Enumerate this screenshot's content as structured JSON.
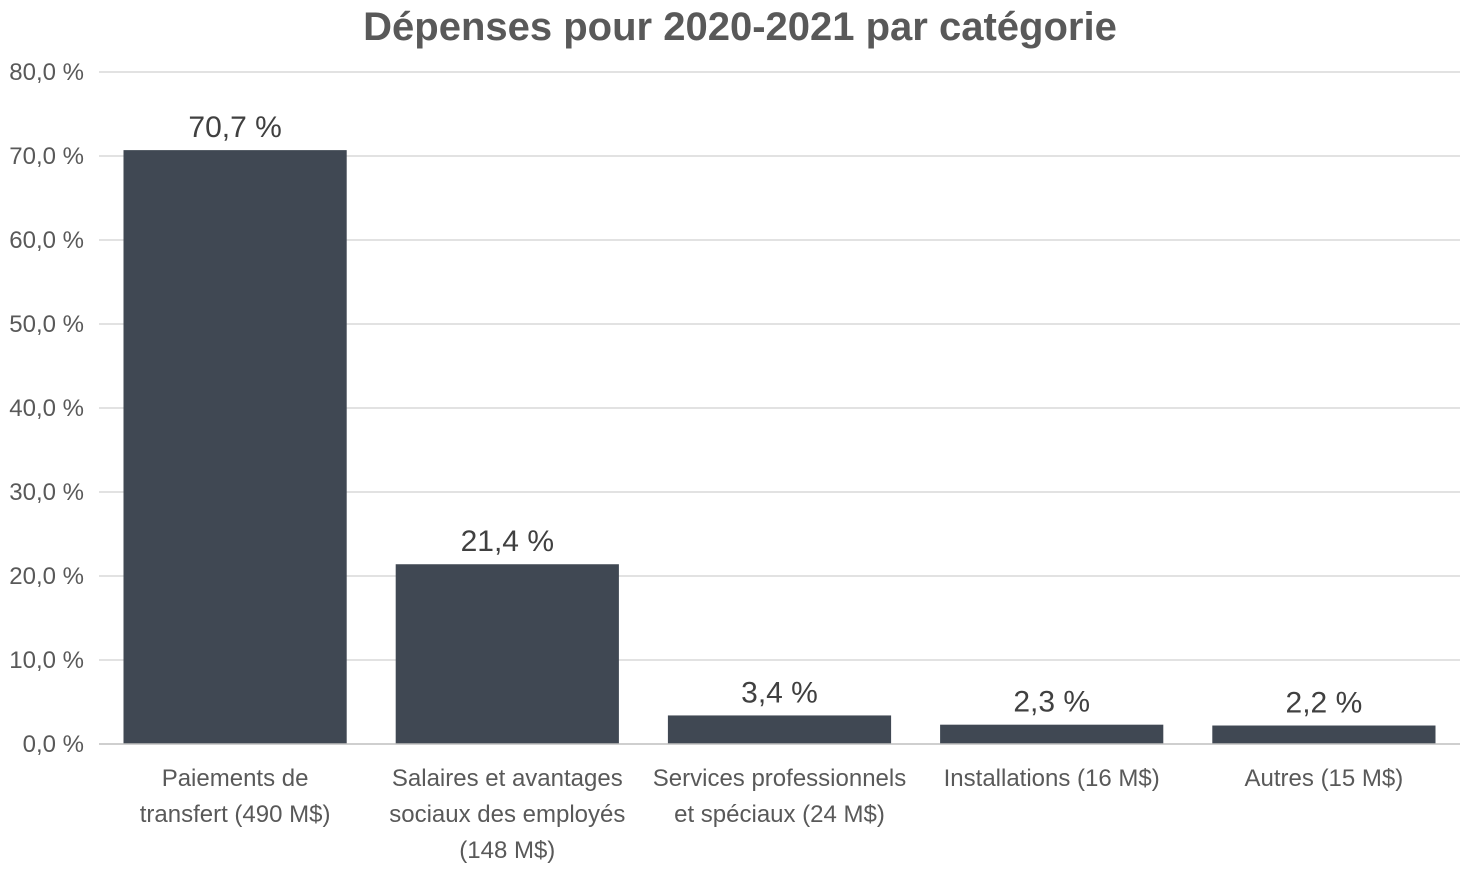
{
  "chart_data": {
    "type": "bar",
    "title": "Dépenses pour 2020-2021 par catégorie",
    "xlabel": "",
    "ylabel": "",
    "categories": [
      [
        "Paiements de",
        "transfert (490 M$)"
      ],
      [
        "Salaires et avantages",
        "sociaux des employés",
        "(148 M$)"
      ],
      [
        "Services professionnels",
        "et spéciaux (24 M$)"
      ],
      [
        "Installations (16 M$)"
      ],
      [
        "Autres (15 M$)"
      ]
    ],
    "values": [
      70.7,
      21.4,
      3.4,
      2.3,
      2.2
    ],
    "data_labels": [
      "70,7 %",
      "21,4 %",
      "3,4 %",
      "2,3 %",
      "2,2 %"
    ],
    "ylim": [
      0,
      80
    ],
    "yticks": [
      0,
      10,
      20,
      30,
      40,
      50,
      60,
      70,
      80
    ],
    "ytick_labels": [
      "0,0 %",
      "10,0 %",
      "20,0 %",
      "30,0 %",
      "40,0 %",
      "50,0 %",
      "60,0 %",
      "70,0 %",
      "80,0 %"
    ],
    "grid": true,
    "legend": "none",
    "bar_color": "#404853"
  }
}
